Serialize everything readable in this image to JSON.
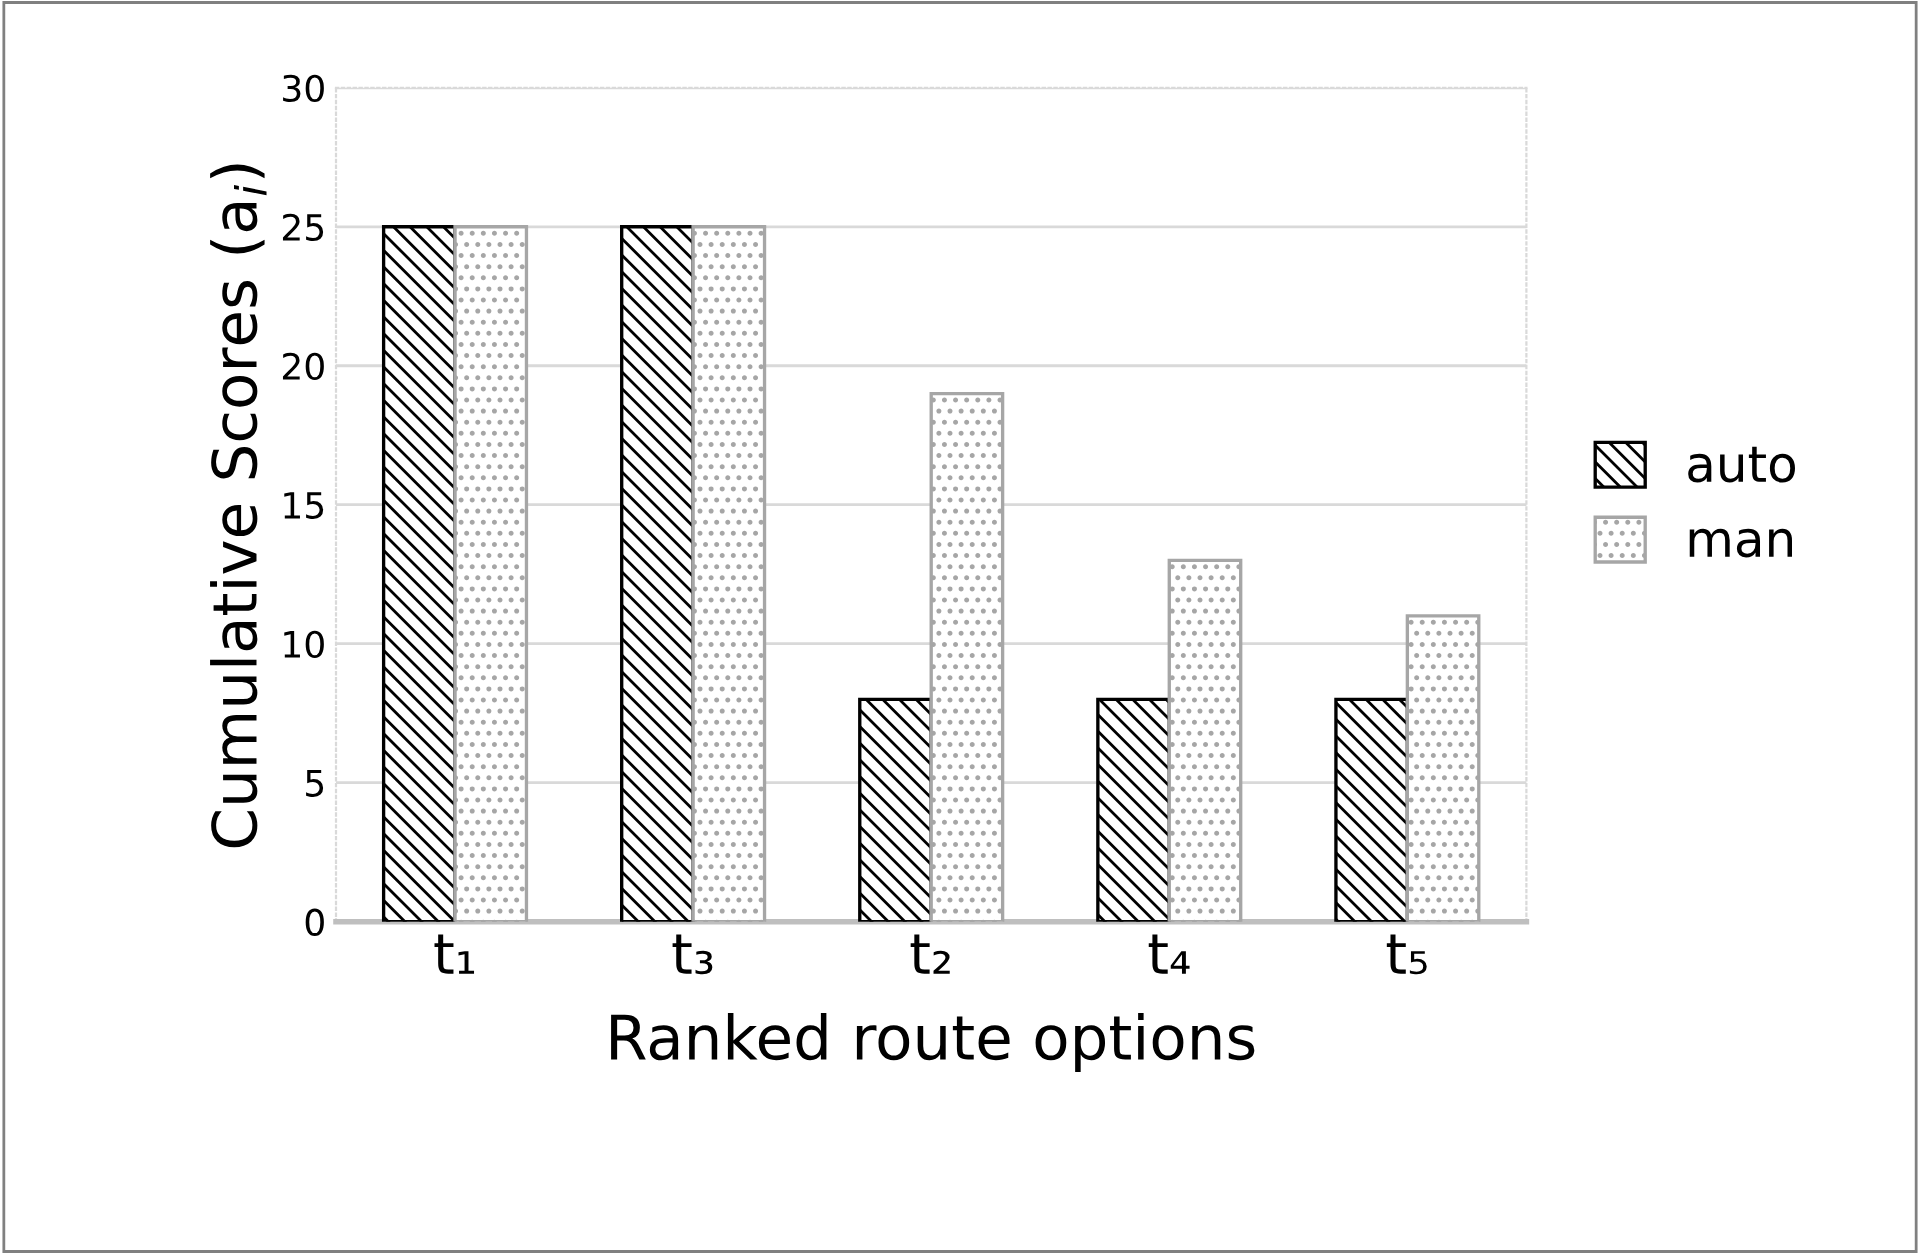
{
  "chart_data": {
    "type": "bar",
    "categories": [
      "t₁",
      "t₃",
      "t₂",
      "t₄",
      "t₅"
    ],
    "xlabel": "Ranked route options",
    "ylabel": "Cumulative Scores (a$_{i}$)",
    "series": [
      {
        "name": "auto",
        "color": "#000000",
        "values": [
          25,
          25,
          8,
          8,
          8
        ]
      },
      {
        "name": "man",
        "color": "#a6a6a6",
        "values": [
          25,
          25,
          19,
          13,
          11
        ]
      }
    ],
    "ylim": [
      0,
      30
    ],
    "yticks": [
      0,
      5,
      10,
      15,
      20,
      25,
      30
    ],
    "grid": "y",
    "legend": "right"
  }
}
